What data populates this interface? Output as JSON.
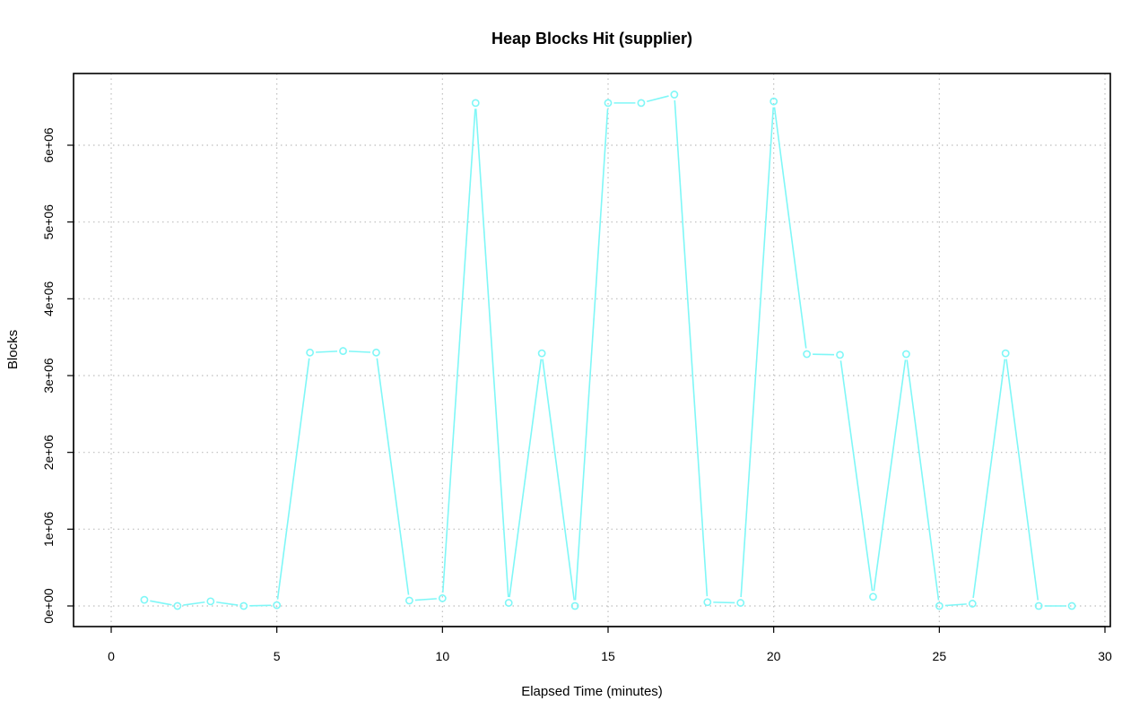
{
  "chart_data": {
    "type": "line",
    "title": "Heap Blocks Hit (supplier)",
    "xlabel": "Elapsed Time (minutes)",
    "ylabel": "Blocks",
    "xlim": [
      0,
      30
    ],
    "ylim": [
      0,
      6800000
    ],
    "x_ticks": [
      0,
      5,
      10,
      15,
      20,
      25,
      30
    ],
    "x_tick_labels": [
      "0",
      "5",
      "10",
      "15",
      "20",
      "25",
      "30"
    ],
    "y_ticks": [
      0,
      1000000,
      2000000,
      3000000,
      4000000,
      5000000,
      6000000
    ],
    "y_tick_labels": [
      "0e+00",
      "1e+06",
      "2e+06",
      "3e+06",
      "4e+06",
      "5e+06",
      "6e+06"
    ],
    "grid": true,
    "series": [
      {
        "color": "#7ff7f7",
        "marker": "open-circle",
        "x": [
          1,
          2,
          3,
          4,
          5,
          6,
          7,
          8,
          9,
          10,
          11,
          12,
          13,
          14,
          15,
          16,
          17,
          18,
          19,
          20,
          21,
          22,
          23,
          24,
          25,
          26,
          27,
          28,
          29
        ],
        "values": [
          80000,
          0,
          60000,
          0,
          10000,
          3300000,
          3320000,
          3300000,
          70000,
          100000,
          6550000,
          40000,
          3290000,
          0,
          6550000,
          6550000,
          6660000,
          50000,
          40000,
          6570000,
          3280000,
          3270000,
          120000,
          3280000,
          0,
          30000,
          3290000,
          0,
          0
        ]
      }
    ]
  }
}
